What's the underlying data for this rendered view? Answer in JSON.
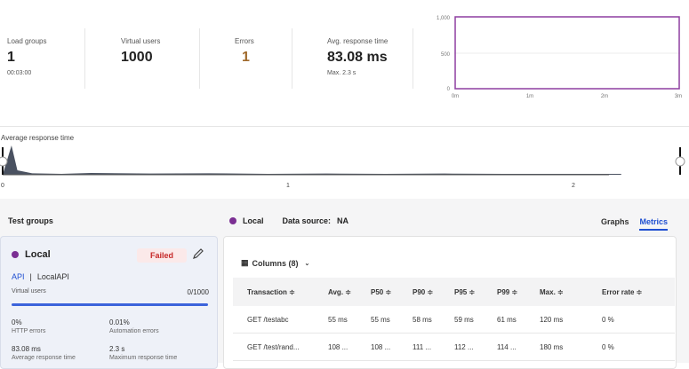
{
  "stats": {
    "load_groups": {
      "label": "Load groups",
      "value": "1",
      "sub": "00:03:00"
    },
    "virtual_users": {
      "label": "Virtual users",
      "value": "1000"
    },
    "errors": {
      "label": "Errors",
      "value": "1",
      "color": "#a06a2c"
    },
    "avg_response": {
      "label": "Avg. response time",
      "value": "83.08 ms",
      "sub": "Max. 2.3 s"
    }
  },
  "mini_chart": {
    "y_ticks": [
      "1,000",
      "500",
      "0"
    ],
    "x_ticks": [
      "0m",
      "1m",
      "2m",
      "3m"
    ],
    "line_color": "#8e3fa0"
  },
  "timeline": {
    "label": "Average response time",
    "x_ticks": [
      "0",
      "1",
      "2"
    ]
  },
  "chart_data": {
    "type": "area",
    "title": "Average response time",
    "x": [
      0,
      0.03,
      0.05,
      0.1,
      0.2,
      0.3,
      0.5,
      0.7,
      0.9,
      1.1,
      1.3,
      1.5,
      1.7,
      1.9,
      2.1
    ],
    "y": [
      0,
      1.0,
      0.15,
      0.05,
      0.03,
      0.06,
      0.04,
      0.05,
      0.03,
      0.04,
      0.03,
      0.04,
      0.03,
      0.03,
      0.03
    ],
    "xlim": [
      0,
      2.3
    ]
  },
  "test_groups": {
    "title": "Test groups",
    "card": {
      "name": "Local",
      "status": "Failed",
      "api": "API",
      "separator": "|",
      "api_name": "LocalAPI",
      "vu_label": "Virtual users",
      "vu_count": "0/1000",
      "progress": 1.0,
      "metrics": [
        {
          "value": "0%",
          "label": "HTTP errors"
        },
        {
          "value": "0.01%",
          "label": "Automation errors"
        },
        {
          "value": "83.08 ms",
          "label": "Average response time"
        },
        {
          "value": "2.3 s",
          "label": "Maximum response time"
        }
      ]
    }
  },
  "detail": {
    "group": "Local",
    "datasource_label": "Data source:",
    "datasource_value": "NA",
    "tabs": [
      "Graphs",
      "Metrics"
    ],
    "columns_label": "Columns (8)",
    "headers": [
      "Transaction ≑",
      "Avg. ≑",
      "P50 ≑",
      "P90 ≑",
      "P95 ≑",
      "P99 ≑",
      "Max. ≑",
      "Error rate ≑"
    ],
    "rows": [
      [
        "GET /testabc",
        "55 ms",
        "55 ms",
        "58 ms",
        "59 ms",
        "61 ms",
        "120 ms",
        "0 %"
      ],
      [
        "GET /test/rand...",
        "108 ...",
        "108 ...",
        "111 ...",
        "112 ...",
        "114 ...",
        "180 ms",
        "0 %"
      ]
    ]
  }
}
